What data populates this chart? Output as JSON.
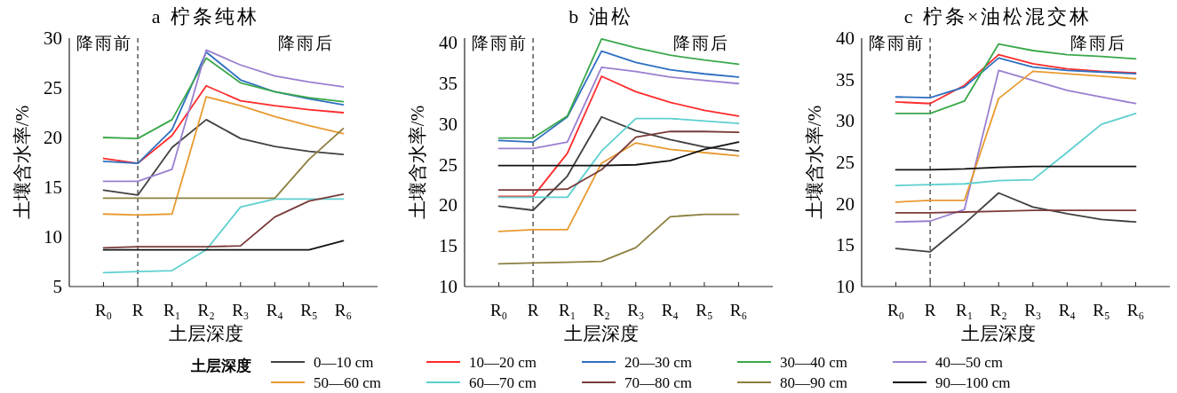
{
  "chart_data": [
    {
      "type": "line",
      "title": "a 柠条纯林",
      "xlabel": "土层深度",
      "ylabel": "土壤含水率/%",
      "categories": [
        "R₀",
        "R",
        "R₁",
        "R₂",
        "R₃",
        "R₄",
        "R₅",
        "R₆"
      ],
      "ylim": [
        5,
        30
      ],
      "yticks": [
        5,
        10,
        15,
        20,
        25,
        30
      ],
      "grid": false,
      "legend": "bottom",
      "legend_title": "土层深度",
      "annotations": [
        "降雨前",
        "降雨后"
      ],
      "ref_lines": [
        {
          "axis": "x",
          "value": "R",
          "color": "#404040",
          "line_style": "dashed"
        }
      ],
      "series": [
        {
          "name": "0—10 cm",
          "color": "#404040",
          "values": [
            14.7,
            14.2,
            19.0,
            21.8,
            19.9,
            19.1,
            18.6,
            18.3
          ]
        },
        {
          "name": "10—20 cm",
          "color": "#ff2a2a",
          "values": [
            17.9,
            17.4,
            20.2,
            25.2,
            23.7,
            23.2,
            22.8,
            22.5
          ]
        },
        {
          "name": "20—30 cm",
          "color": "#2e6fc0",
          "values": [
            17.6,
            17.4,
            20.8,
            28.6,
            25.8,
            24.6,
            23.9,
            23.3
          ]
        },
        {
          "name": "30—40 cm",
          "color": "#3aa84a",
          "values": [
            20.0,
            19.9,
            21.8,
            28.0,
            25.5,
            24.6,
            24.0,
            23.6
          ]
        },
        {
          "name": "40—50 cm",
          "color": "#9a7fd0",
          "values": [
            15.6,
            15.6,
            16.8,
            28.8,
            27.3,
            26.2,
            25.6,
            25.1
          ]
        },
        {
          "name": "50—60 cm",
          "color": "#e89a30",
          "values": [
            12.3,
            12.2,
            12.3,
            24.1,
            23.2,
            22.1,
            21.2,
            20.4
          ]
        },
        {
          "name": "60—70 cm",
          "color": "#5ecfcf",
          "values": [
            6.4,
            6.5,
            6.6,
            8.7,
            13.0,
            13.8,
            13.8,
            13.8
          ]
        },
        {
          "name": "70—80 cm",
          "color": "#7a3a3a",
          "values": [
            8.9,
            9.0,
            9.0,
            9.0,
            9.1,
            12.0,
            13.6,
            14.3
          ]
        },
        {
          "name": "80—90 cm",
          "color": "#8c8040",
          "values": [
            13.9,
            13.9,
            13.9,
            13.9,
            13.9,
            13.9,
            17.8,
            20.9
          ]
        },
        {
          "name": "90—100 cm",
          "color": "#111111",
          "values": [
            8.7,
            8.7,
            8.7,
            8.7,
            8.7,
            8.7,
            8.7,
            9.6
          ]
        }
      ]
    },
    {
      "type": "line",
      "title": "b 油松",
      "xlabel": "土层深度",
      "ylabel": "土壤含水率/%",
      "categories": [
        "R₀",
        "R",
        "R₁",
        "R₂",
        "R₃",
        "R₄",
        "R₅",
        "R₆"
      ],
      "ylim": [
        10,
        40.6
      ],
      "yticks": [
        10,
        15,
        20,
        25,
        30,
        35,
        40
      ],
      "grid": false,
      "annotations": [
        "降雨前",
        "降雨后"
      ],
      "ref_lines": [
        {
          "axis": "x",
          "value": "R",
          "color": "#404040",
          "line_style": "dashed"
        }
      ],
      "series": [
        {
          "color": "#404040",
          "values": [
            19.9,
            19.4,
            23.6,
            30.9,
            29.2,
            28.1,
            27.2,
            26.7
          ]
        },
        {
          "color": "#ff2a2a",
          "values": [
            21.1,
            21.1,
            26.4,
            35.9,
            34.0,
            32.7,
            31.7,
            31.0
          ]
        },
        {
          "color": "#2e6fc0",
          "values": [
            28.0,
            27.8,
            30.9,
            39.0,
            37.6,
            36.7,
            36.2,
            35.8
          ]
        },
        {
          "color": "#3aa84a",
          "values": [
            28.3,
            28.3,
            31.0,
            40.5,
            39.4,
            38.5,
            37.9,
            37.4
          ]
        },
        {
          "color": "#9a7fd0",
          "values": [
            27.0,
            27.0,
            27.8,
            37.0,
            36.5,
            35.8,
            35.4,
            35.0
          ]
        },
        {
          "color": "#e89a30",
          "values": [
            16.8,
            17.0,
            17.0,
            25.2,
            27.7,
            26.9,
            26.5,
            26.1
          ]
        },
        {
          "color": "#5ecfcf",
          "values": [
            21.0,
            21.0,
            21.0,
            26.7,
            30.7,
            30.7,
            30.4,
            30.1
          ]
        },
        {
          "color": "#7a3a3a",
          "values": [
            21.9,
            21.9,
            22.0,
            24.4,
            28.4,
            29.1,
            29.1,
            29.0
          ]
        },
        {
          "color": "#8c8040",
          "values": [
            12.8,
            12.9,
            13.0,
            13.1,
            14.8,
            18.6,
            18.9,
            18.9
          ]
        },
        {
          "color": "#111111",
          "values": [
            24.9,
            24.9,
            24.9,
            24.9,
            25.0,
            25.5,
            26.9,
            27.8
          ]
        }
      ]
    },
    {
      "type": "line",
      "title": "c 柠条×油松混交林",
      "xlabel": "土层深度",
      "ylabel": "土壤含水率/%",
      "categories": [
        "R₀",
        "R",
        "R₁",
        "R₂",
        "R₃",
        "R₄",
        "R₅",
        "R₆"
      ],
      "ylim": [
        10,
        40
      ],
      "yticks": [
        10,
        15,
        20,
        25,
        30,
        35,
        40
      ],
      "grid": false,
      "annotations": [
        "降雨前",
        "降雨后"
      ],
      "ref_lines": [
        {
          "axis": "x",
          "value": "R",
          "color": "#404040",
          "line_style": "dashed"
        }
      ],
      "series": [
        {
          "color": "#404040",
          "values": [
            14.6,
            14.2,
            17.6,
            21.3,
            19.6,
            18.8,
            18.1,
            17.8
          ]
        },
        {
          "color": "#ff2a2a",
          "values": [
            32.3,
            32.1,
            34.3,
            38.0,
            36.9,
            36.3,
            36.0,
            35.8
          ]
        },
        {
          "color": "#2e6fc0",
          "values": [
            32.9,
            32.8,
            34.1,
            37.6,
            36.5,
            36.1,
            35.9,
            35.7
          ]
        },
        {
          "color": "#3aa84a",
          "values": [
            30.9,
            30.9,
            32.4,
            39.3,
            38.5,
            38.0,
            37.8,
            37.5
          ]
        },
        {
          "color": "#9a7fd0",
          "values": [
            17.8,
            17.9,
            19.3,
            36.1,
            34.9,
            33.7,
            32.9,
            32.1
          ]
        },
        {
          "color": "#e89a30",
          "values": [
            20.2,
            20.4,
            20.4,
            32.7,
            36.0,
            35.7,
            35.4,
            35.1
          ]
        },
        {
          "color": "#5ecfcf",
          "values": [
            22.2,
            22.3,
            22.4,
            22.8,
            22.9,
            26.2,
            29.6,
            30.9
          ]
        },
        {
          "color": "#7a3a3a",
          "values": [
            18.9,
            18.9,
            19.0,
            19.1,
            19.2,
            19.2,
            19.2,
            19.2
          ]
        },
        {
          "color": "#111111",
          "values": [
            24.1,
            24.1,
            24.2,
            24.4,
            24.5,
            24.5,
            24.5,
            24.5
          ]
        }
      ]
    }
  ]
}
